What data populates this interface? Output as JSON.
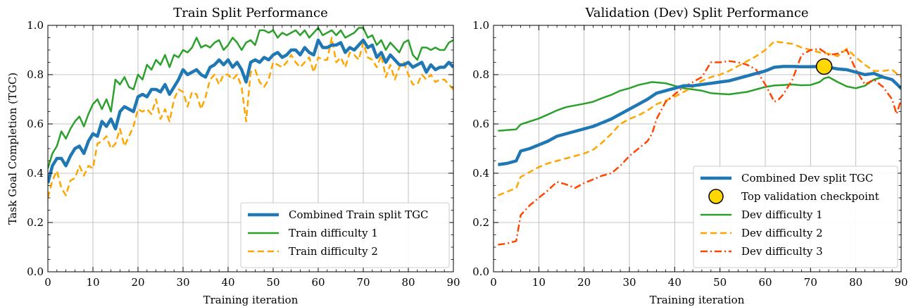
{
  "chart_data": [
    {
      "type": "line",
      "title": "Train Split Performance",
      "xlabel": "Training iteration",
      "ylabel": "Task Goal Completion (TGC)",
      "xlim": [
        0,
        90
      ],
      "ylim": [
        0,
        1.0
      ],
      "xticks": [
        "0",
        "10",
        "20",
        "30",
        "40",
        "50",
        "60",
        "70",
        "80",
        "90"
      ],
      "yticks": [
        "0.0",
        "0.2",
        "0.4",
        "0.6",
        "0.8",
        "1.0"
      ],
      "grid": true,
      "legend_position": "bottom-right",
      "x": [
        0,
        1,
        2,
        3,
        4,
        5,
        6,
        7,
        8,
        9,
        10,
        11,
        12,
        13,
        14,
        15,
        16,
        17,
        18,
        19,
        20,
        21,
        22,
        23,
        24,
        25,
        26,
        27,
        28,
        29,
        30,
        31,
        32,
        33,
        34,
        35,
        36,
        37,
        38,
        39,
        40,
        41,
        42,
        43,
        44,
        45,
        46,
        47,
        48,
        49,
        50,
        51,
        52,
        53,
        54,
        55,
        56,
        57,
        58,
        59,
        60,
        61,
        62,
        63,
        64,
        65,
        66,
        67,
        68,
        69,
        70,
        71,
        72,
        73,
        74,
        75,
        76,
        77,
        78,
        79,
        80,
        81,
        82,
        83,
        84,
        85,
        86,
        87,
        88,
        89,
        90
      ],
      "series": [
        {
          "name": "Combined Train split TGC",
          "color": "#1f77b4",
          "style": "solid-thick",
          "values": [
            0.36,
            0.43,
            0.46,
            0.46,
            0.43,
            0.47,
            0.5,
            0.51,
            0.48,
            0.53,
            0.56,
            0.55,
            0.61,
            0.59,
            0.62,
            0.58,
            0.65,
            0.67,
            0.66,
            0.65,
            0.71,
            0.72,
            0.71,
            0.74,
            0.74,
            0.73,
            0.76,
            0.72,
            0.75,
            0.78,
            0.82,
            0.8,
            0.81,
            0.82,
            0.8,
            0.79,
            0.83,
            0.84,
            0.86,
            0.84,
            0.86,
            0.83,
            0.85,
            0.82,
            0.77,
            0.85,
            0.86,
            0.85,
            0.87,
            0.86,
            0.88,
            0.89,
            0.87,
            0.88,
            0.9,
            0.9,
            0.88,
            0.91,
            0.89,
            0.88,
            0.94,
            0.91,
            0.91,
            0.92,
            0.92,
            0.93,
            0.89,
            0.91,
            0.9,
            0.92,
            0.94,
            0.91,
            0.92,
            0.87,
            0.89,
            0.85,
            0.88,
            0.86,
            0.84,
            0.84,
            0.85,
            0.83,
            0.84,
            0.85,
            0.81,
            0.84,
            0.82,
            0.83,
            0.83,
            0.85,
            0.83
          ]
        },
        {
          "name": "Train difficulty 1",
          "color": "#2ca02c",
          "style": "solid",
          "values": [
            0.42,
            0.48,
            0.51,
            0.57,
            0.54,
            0.58,
            0.61,
            0.63,
            0.59,
            0.64,
            0.68,
            0.7,
            0.66,
            0.7,
            0.65,
            0.78,
            0.76,
            0.79,
            0.75,
            0.74,
            0.8,
            0.78,
            0.84,
            0.82,
            0.86,
            0.84,
            0.88,
            0.83,
            0.88,
            0.87,
            0.9,
            0.89,
            0.91,
            0.95,
            0.91,
            0.92,
            0.91,
            0.93,
            0.94,
            0.9,
            0.92,
            0.95,
            0.93,
            0.9,
            0.93,
            0.94,
            0.92,
            0.98,
            0.98,
            0.97,
            0.98,
            0.95,
            0.97,
            0.96,
            0.97,
            0.98,
            0.96,
            0.98,
            0.95,
            0.97,
            0.99,
            0.96,
            0.97,
            0.98,
            0.96,
            0.98,
            0.95,
            0.96,
            0.97,
            0.99,
            0.99,
            0.95,
            0.96,
            0.92,
            0.94,
            0.9,
            0.93,
            0.91,
            0.89,
            0.93,
            0.94,
            0.88,
            0.86,
            0.91,
            0.91,
            0.9,
            0.91,
            0.9,
            0.9,
            0.93,
            0.94
          ]
        },
        {
          "name": "Train difficulty 2",
          "color": "#ffa500",
          "style": "dashed",
          "values": [
            0.3,
            0.37,
            0.41,
            0.34,
            0.31,
            0.37,
            0.38,
            0.43,
            0.39,
            0.43,
            0.42,
            0.52,
            0.53,
            0.55,
            0.5,
            0.52,
            0.58,
            0.51,
            0.55,
            0.59,
            0.66,
            0.65,
            0.66,
            0.64,
            0.7,
            0.62,
            0.66,
            0.61,
            0.7,
            0.74,
            0.73,
            0.67,
            0.73,
            0.72,
            0.66,
            0.71,
            0.78,
            0.8,
            0.76,
            0.8,
            0.8,
            0.78,
            0.8,
            0.75,
            0.61,
            0.81,
            0.82,
            0.77,
            0.75,
            0.78,
            0.85,
            0.84,
            0.83,
            0.85,
            0.88,
            0.85,
            0.83,
            0.85,
            0.87,
            0.81,
            0.87,
            0.86,
            0.86,
            0.95,
            0.85,
            0.87,
            0.83,
            0.89,
            0.88,
            0.86,
            0.93,
            0.87,
            0.86,
            0.83,
            0.88,
            0.79,
            0.84,
            0.78,
            0.83,
            0.85,
            0.8,
            0.76,
            0.76,
            0.8,
            0.78,
            0.8,
            0.77,
            0.78,
            0.78,
            0.76,
            0.74
          ]
        }
      ]
    },
    {
      "type": "line",
      "title": "Validation (Dev) Split Performance",
      "xlabel": "Training iteration",
      "ylabel": "",
      "xlim": [
        0,
        90
      ],
      "ylim": [
        0,
        1.0
      ],
      "xticks": [
        "0",
        "10",
        "20",
        "30",
        "40",
        "50",
        "60",
        "70",
        "80",
        "90"
      ],
      "yticks": [
        "0.0",
        "0.2",
        "0.4",
        "0.6",
        "0.8",
        "1.0"
      ],
      "grid": true,
      "legend_position": "bottom-right",
      "series": [
        {
          "name": "Combined Dev split TGC",
          "color": "#1f77b4",
          "style": "solid-thick",
          "x": [
            1,
            3,
            5,
            6,
            8,
            10,
            12,
            14,
            16,
            18,
            20,
            22,
            24,
            26,
            28,
            30,
            32,
            34,
            36,
            38,
            40,
            42,
            44,
            46,
            48,
            50,
            52,
            54,
            56,
            58,
            60,
            62,
            64,
            66,
            68,
            70,
            72,
            73,
            74,
            76,
            78,
            80,
            82,
            84,
            86,
            88,
            90
          ],
          "values": [
            0.435,
            0.44,
            0.45,
            0.49,
            0.5,
            0.515,
            0.53,
            0.55,
            0.56,
            0.57,
            0.58,
            0.59,
            0.605,
            0.62,
            0.64,
            0.66,
            0.68,
            0.7,
            0.725,
            0.735,
            0.745,
            0.755,
            0.755,
            0.76,
            0.765,
            0.77,
            0.775,
            0.785,
            0.795,
            0.805,
            0.815,
            0.83,
            0.833,
            0.833,
            0.832,
            0.832,
            0.833,
            0.833,
            0.83,
            0.823,
            0.82,
            0.81,
            0.8,
            0.805,
            0.79,
            0.78,
            0.745
          ]
        },
        {
          "name": "Dev difficulty 1",
          "color": "#2ca02c",
          "style": "solid",
          "x": [
            1,
            3,
            5,
            6,
            8,
            10,
            12,
            14,
            16,
            18,
            20,
            22,
            24,
            26,
            28,
            30,
            32,
            35,
            38,
            40,
            42,
            44,
            46,
            48,
            50,
            52,
            54,
            56,
            58,
            60,
            62,
            64,
            66,
            68,
            70,
            72,
            73,
            74,
            76,
            78,
            80,
            82,
            84,
            86,
            88,
            90
          ],
          "values": [
            0.572,
            0.575,
            0.578,
            0.598,
            0.61,
            0.622,
            0.638,
            0.655,
            0.668,
            0.675,
            0.682,
            0.69,
            0.705,
            0.718,
            0.735,
            0.745,
            0.758,
            0.77,
            0.765,
            0.755,
            0.745,
            0.74,
            0.735,
            0.725,
            0.722,
            0.72,
            0.725,
            0.73,
            0.74,
            0.75,
            0.756,
            0.758,
            0.76,
            0.757,
            0.758,
            0.77,
            0.785,
            0.79,
            0.77,
            0.752,
            0.745,
            0.755,
            0.78,
            0.79,
            0.78,
            0.74
          ]
        },
        {
          "name": "Dev difficulty 2",
          "color": "#ffa500",
          "style": "dashed",
          "x": [
            1,
            3,
            5,
            6,
            8,
            10,
            12,
            14,
            16,
            18,
            20,
            22,
            24,
            26,
            28,
            30,
            32,
            34,
            36,
            38,
            40,
            42,
            44,
            46,
            48,
            50,
            52,
            54,
            56,
            58,
            60,
            62,
            64,
            66,
            68,
            70,
            72,
            74,
            76,
            78,
            80,
            82,
            84,
            86,
            88,
            90
          ],
          "values": [
            0.31,
            0.325,
            0.34,
            0.385,
            0.405,
            0.425,
            0.44,
            0.45,
            0.46,
            0.47,
            0.48,
            0.495,
            0.525,
            0.56,
            0.6,
            0.62,
            0.635,
            0.655,
            0.68,
            0.695,
            0.71,
            0.73,
            0.75,
            0.775,
            0.79,
            0.8,
            0.815,
            0.835,
            0.855,
            0.875,
            0.9,
            0.935,
            0.93,
            0.925,
            0.91,
            0.9,
            0.89,
            0.885,
            0.875,
            0.905,
            0.87,
            0.84,
            0.815,
            0.815,
            0.82,
            0.79
          ]
        },
        {
          "name": "Dev difficulty 3",
          "color": "#ff4500",
          "style": "dashdot",
          "x": [
            1,
            3,
            5,
            6,
            8,
            10,
            12,
            14,
            16,
            18,
            20,
            22,
            24,
            26,
            28,
            30,
            32,
            34,
            35,
            36,
            38,
            40,
            42,
            44,
            46,
            48,
            50,
            52,
            54,
            56,
            58,
            60,
            62,
            63,
            64,
            66,
            68,
            70,
            72,
            74,
            76,
            78,
            80,
            82,
            84,
            86,
            88,
            89,
            90
          ],
          "values": [
            0.11,
            0.115,
            0.125,
            0.23,
            0.27,
            0.3,
            0.33,
            0.365,
            0.355,
            0.34,
            0.36,
            0.375,
            0.39,
            0.4,
            0.43,
            0.47,
            0.5,
            0.53,
            0.56,
            0.62,
            0.69,
            0.72,
            0.75,
            0.77,
            0.79,
            0.85,
            0.85,
            0.855,
            0.85,
            0.84,
            0.82,
            0.76,
            0.69,
            0.7,
            0.72,
            0.78,
            0.88,
            0.9,
            0.905,
            0.88,
            0.885,
            0.9,
            0.82,
            0.76,
            0.78,
            0.75,
            0.7,
            0.64,
            0.7
          ]
        }
      ],
      "annotations": [
        {
          "name": "Top validation checkpoint",
          "type": "marker",
          "x": 73,
          "y": 0.833,
          "color": "#ffd700"
        }
      ]
    }
  ]
}
